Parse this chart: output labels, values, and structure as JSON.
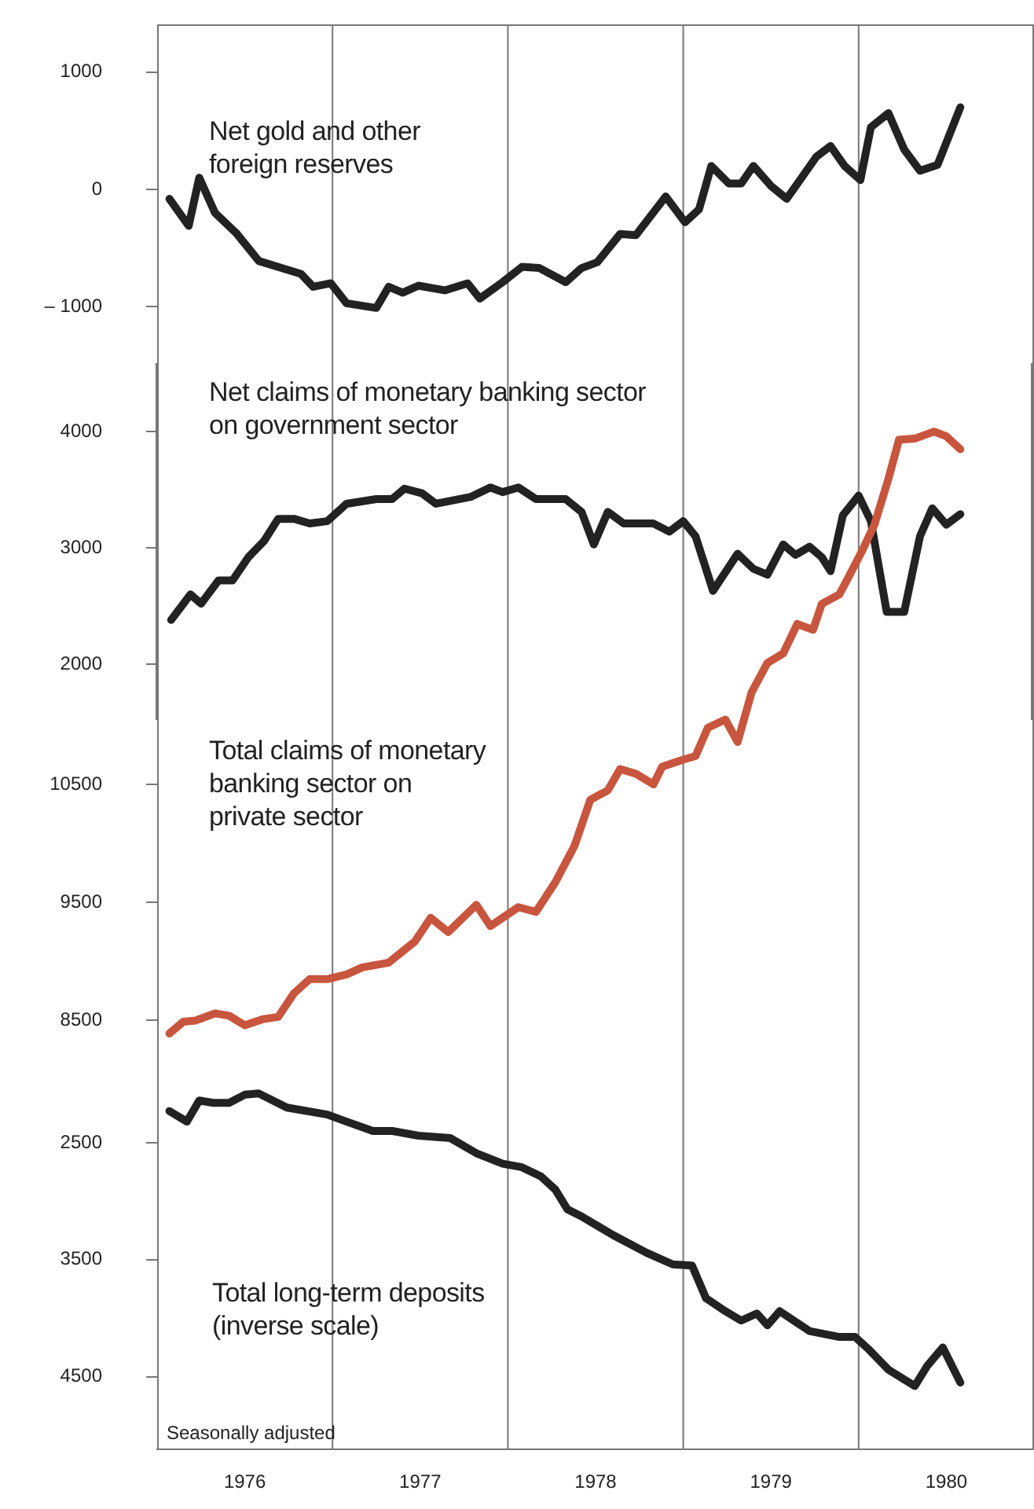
{
  "chart_data": [
    {
      "type": "line",
      "xlim": [
        1976,
        1981
      ],
      "ylim": [
        -1480,
        1400
      ],
      "yticks": [
        1000,
        0,
        {
          "value": -1000,
          "label": "– 1000"
        }
      ],
      "tick_labels": "y",
      "ref_lines": [
        {
          "axis": "x",
          "value": 1977,
          "color": "#777777"
        },
        {
          "axis": "x",
          "value": 1978,
          "color": "#777777"
        },
        {
          "axis": "x",
          "value": 1979,
          "color": "#777777"
        },
        {
          "axis": "x",
          "value": 1980,
          "color": "#777777"
        }
      ],
      "series": [
        {
          "name": "Net gold and other foreign reserves",
          "color": "#222222",
          "x": [
            1976.07,
            1976.18,
            1976.24,
            1976.33,
            1976.45,
            1976.58,
            1976.71,
            1976.82,
            1976.89,
            1976.99,
            1977.08,
            1977.25,
            1977.32,
            1977.4,
            1977.49,
            1977.64,
            1977.77,
            1977.84,
            1977.97,
            1978.08,
            1978.18,
            1978.33,
            1978.42,
            1978.51,
            1978.64,
            1978.73,
            1978.9,
            1979.01,
            1979.09,
            1979.16,
            1979.26,
            1979.33,
            1979.4,
            1979.5,
            1979.59,
            1979.76,
            1979.84,
            1979.92,
            1980.01,
            1980.07,
            1980.17,
            1980.26,
            1980.35,
            1980.45,
            1980.58
          ],
          "values": [
            -80,
            -310,
            100,
            -200,
            -370,
            -610,
            -670,
            -720,
            -830,
            -800,
            -970,
            -1010,
            -830,
            -880,
            -820,
            -860,
            -800,
            -930,
            -790,
            -660,
            -670,
            -790,
            -670,
            -620,
            -380,
            -390,
            -60,
            -280,
            -170,
            200,
            50,
            50,
            200,
            30,
            -80,
            280,
            370,
            200,
            80,
            530,
            650,
            340,
            160,
            210,
            700
          ]
        }
      ]
    },
    {
      "type": "line",
      "xlim": [
        1976,
        1981
      ],
      "ylim": [
        1520,
        4590
      ],
      "yticks": [
        4000,
        3000,
        2000
      ],
      "tick_labels": "y",
      "ref_lines": [
        {
          "axis": "x",
          "value": 1977,
          "color": "#777777"
        },
        {
          "axis": "x",
          "value": 1978,
          "color": "#777777"
        },
        {
          "axis": "x",
          "value": 1979,
          "color": "#777777"
        },
        {
          "axis": "x",
          "value": 1980,
          "color": "#777777"
        }
      ],
      "series": [
        {
          "name": "Net claims of monetary banking sector on government sector",
          "color": "#222222",
          "x": [
            1976.08,
            1976.19,
            1976.25,
            1976.35,
            1976.43,
            1976.52,
            1976.61,
            1976.69,
            1976.78,
            1976.87,
            1976.97,
            1977.08,
            1977.25,
            1977.34,
            1977.41,
            1977.51,
            1977.59,
            1977.79,
            1977.9,
            1977.97,
            1978.06,
            1978.16,
            1978.33,
            1978.42,
            1978.49,
            1978.57,
            1978.66,
            1978.83,
            1978.92,
            1979.0,
            1979.07,
            1979.17,
            1979.31,
            1979.4,
            1979.48,
            1979.57,
            1979.64,
            1979.72,
            1979.79,
            1979.84,
            1979.91,
            1980.0,
            1980.07,
            1980.16,
            1980.26,
            1980.35,
            1980.42,
            1980.5,
            1980.58
          ],
          "values": [
            2380,
            2600,
            2520,
            2720,
            2720,
            2920,
            3060,
            3250,
            3250,
            3210,
            3230,
            3380,
            3420,
            3420,
            3510,
            3470,
            3380,
            3440,
            3520,
            3480,
            3520,
            3420,
            3420,
            3310,
            3030,
            3310,
            3210,
            3210,
            3140,
            3230,
            3100,
            2630,
            2950,
            2820,
            2770,
            3030,
            2940,
            3010,
            2920,
            2800,
            3280,
            3450,
            3230,
            2450,
            2450,
            3100,
            3340,
            3200,
            3290
          ]
        }
      ]
    },
    {
      "type": "line",
      "xlim": [
        1976,
        1981
      ],
      "ylim": [
        8010,
        14070
      ],
      "yticks": [
        10500,
        9500,
        8500
      ],
      "tick_labels": "y",
      "ref_lines": [
        {
          "axis": "x",
          "value": 1977,
          "color": "#777777"
        },
        {
          "axis": "x",
          "value": 1978,
          "color": "#777777"
        },
        {
          "axis": "x",
          "value": 1979,
          "color": "#777777"
        },
        {
          "axis": "x",
          "value": 1980,
          "color": "#777777"
        }
      ],
      "series": [
        {
          "name": "Total claims of monetary banking sector on private sector",
          "color": "#c8553d",
          "x": [
            1976.07,
            1976.15,
            1976.22,
            1976.33,
            1976.41,
            1976.5,
            1976.6,
            1976.69,
            1976.78,
            1976.87,
            1976.97,
            1977.08,
            1977.17,
            1977.32,
            1977.47,
            1977.56,
            1977.66,
            1977.82,
            1977.9,
            1977.99,
            1978.06,
            1978.16,
            1978.27,
            1978.38,
            1978.47,
            1978.57,
            1978.64,
            1978.73,
            1978.83,
            1978.88,
            1979.0,
            1979.07,
            1979.14,
            1979.24,
            1979.31,
            1979.39,
            1979.48,
            1979.57,
            1979.65,
            1979.74,
            1979.79,
            1979.89,
            1979.94,
            1980.02,
            1980.09,
            1980.17,
            1980.23,
            1980.32,
            1980.43,
            1980.5,
            1980.58
          ],
          "values": [
            8390,
            8490,
            8500,
            8560,
            8540,
            8460,
            8510,
            8530,
            8730,
            8850,
            8850,
            8890,
            8950,
            8990,
            9170,
            9370,
            9250,
            9480,
            9300,
            9390,
            9460,
            9420,
            9670,
            9980,
            10370,
            10450,
            10630,
            10590,
            10500,
            10650,
            10710,
            10740,
            10980,
            11050,
            10860,
            11280,
            11530,
            11610,
            11860,
            11810,
            12030,
            12110,
            12250,
            12480,
            12700,
            13090,
            13420,
            13430,
            13490,
            13450,
            13340
          ]
        }
      ]
    },
    {
      "type": "line",
      "xlim": [
        1976,
        1981
      ],
      "ylim": [
        5120,
        1950
      ],
      "yticks": [
        2500,
        3500,
        4500
      ],
      "xticks": [
        {
          "value": 1976.5,
          "label": "1976"
        },
        {
          "value": 1977.5,
          "label": "1977"
        },
        {
          "value": 1978.5,
          "label": "1978"
        },
        {
          "value": 1979.5,
          "label": "1979"
        },
        {
          "value": 1980.5,
          "label": "1980"
        }
      ],
      "ref_lines": [
        {
          "axis": "x",
          "value": 1977,
          "color": "#777777"
        },
        {
          "axis": "x",
          "value": 1978,
          "color": "#777777"
        },
        {
          "axis": "x",
          "value": 1979,
          "color": "#777777"
        },
        {
          "axis": "x",
          "value": 1980,
          "color": "#777777"
        }
      ],
      "annotations": [
        "Seasonally adjusted"
      ],
      "series": [
        {
          "name": "Total long-term deposits (inverse scale)",
          "color": "#222222",
          "x": [
            1976.07,
            1976.17,
            1976.24,
            1976.32,
            1976.41,
            1976.5,
            1976.58,
            1976.74,
            1976.97,
            1977.08,
            1977.23,
            1977.34,
            1977.49,
            1977.67,
            1977.82,
            1977.97,
            1978.08,
            1978.19,
            1978.27,
            1978.34,
            1978.42,
            1978.6,
            1978.79,
            1978.94,
            1979.05,
            1979.13,
            1979.24,
            1979.33,
            1979.42,
            1979.48,
            1979.55,
            1979.72,
            1979.89,
            1979.98,
            1980.06,
            1980.17,
            1980.32,
            1980.39,
            1980.48,
            1980.58
          ],
          "values": [
            2230,
            2320,
            2140,
            2160,
            2160,
            2090,
            2080,
            2200,
            2260,
            2320,
            2400,
            2400,
            2440,
            2460,
            2590,
            2680,
            2710,
            2790,
            2900,
            3070,
            3130,
            3290,
            3440,
            3540,
            3550,
            3830,
            3940,
            4020,
            3960,
            4060,
            3940,
            4110,
            4160,
            4160,
            4270,
            4440,
            4580,
            4410,
            4250,
            4550
          ]
        }
      ]
    }
  ]
}
